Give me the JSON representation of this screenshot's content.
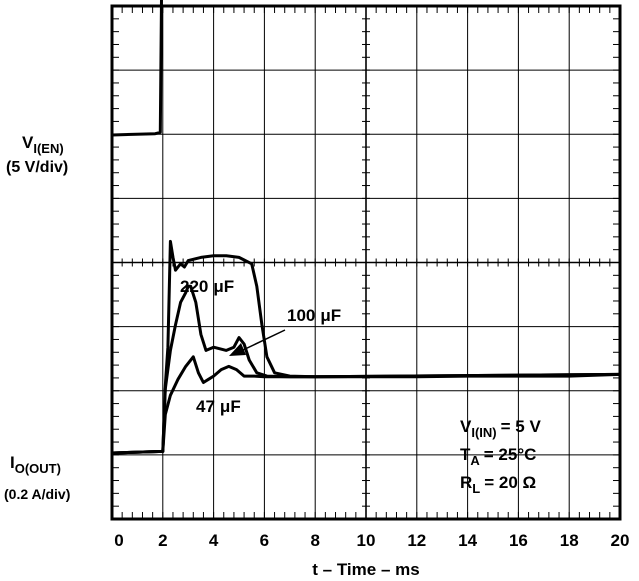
{
  "chart_data": {
    "type": "line",
    "xlabel": "t – Time – ms",
    "x_ticks": [
      "0",
      "2",
      "4",
      "6",
      "8",
      "10",
      "12",
      "14",
      "16",
      "18",
      "20"
    ],
    "xlim": [
      0,
      20
    ],
    "grid": true,
    "channels": [
      {
        "label_main": "V",
        "label_sub": "I(EN)",
        "scale": "(5 V/div)"
      },
      {
        "label_main": "I",
        "label_sub": "O(OUT)",
        "scale": "(0.2 A/div)"
      }
    ],
    "series": [
      {
        "name": "",
        "channel": "V(I(EN))",
        "unit": "V",
        "x": [
          0,
          1.7,
          1.9,
          1.95,
          2.05,
          2.2,
          2.35,
          2.6,
          3.5,
          6,
          10,
          14,
          18,
          20
        ],
        "values": [
          0,
          0.1,
          0.2,
          10.6,
          13.4,
          14.4,
          13.2,
          12.8,
          12.9,
          12.9,
          12.8,
          12.8,
          12.8,
          12.8
        ]
      },
      {
        "name": "220 µF",
        "channel": "I(O(OUT))",
        "unit": "A",
        "x": [
          0,
          2.0,
          2.1,
          2.2,
          2.25,
          2.3,
          2.4,
          2.5,
          2.6,
          2.7,
          2.85,
          3.0,
          3.5,
          4.0,
          4.5,
          5.0,
          5.5,
          5.7,
          5.9,
          6.1,
          6.4,
          7.0,
          8.0,
          10,
          12,
          14,
          16,
          18,
          20
        ],
        "values": [
          0,
          0.005,
          0.21,
          0.33,
          0.5,
          0.66,
          0.61,
          0.57,
          0.58,
          0.59,
          0.58,
          0.6,
          0.61,
          0.615,
          0.615,
          0.61,
          0.59,
          0.52,
          0.4,
          0.3,
          0.25,
          0.24,
          0.238,
          0.238,
          0.238,
          0.24,
          0.24,
          0.24,
          0.245
        ]
      },
      {
        "name": "100 µF",
        "channel": "I(O(OUT))",
        "unit": "A",
        "x": [
          0,
          2.0,
          2.1,
          2.3,
          2.5,
          2.7,
          2.9,
          3.0,
          3.1,
          3.3,
          3.5,
          3.7,
          4.0,
          4.5,
          4.8,
          5.0,
          5.2,
          5.4,
          5.7,
          6.1,
          7.0,
          8.0,
          20
        ],
        "values": [
          0,
          0.005,
          0.2,
          0.32,
          0.4,
          0.47,
          0.5,
          0.52,
          0.52,
          0.47,
          0.37,
          0.32,
          0.33,
          0.32,
          0.33,
          0.36,
          0.34,
          0.29,
          0.25,
          0.24,
          0.238,
          0.238,
          0.245
        ]
      },
      {
        "name": "47 µF",
        "channel": "I(O(OUT))",
        "unit": "A",
        "x": [
          0,
          2.0,
          2.1,
          2.3,
          2.6,
          2.9,
          3.2,
          3.4,
          3.6,
          3.8,
          4.0,
          4.3,
          4.6,
          4.9,
          5.2,
          5.6,
          6.0,
          7.0,
          8.0,
          20
        ],
        "values": [
          0,
          0.005,
          0.12,
          0.18,
          0.23,
          0.27,
          0.3,
          0.25,
          0.22,
          0.23,
          0.24,
          0.26,
          0.27,
          0.26,
          0.24,
          0.24,
          0.238,
          0.238,
          0.238,
          0.245
        ]
      }
    ],
    "annotations": {
      "cap_220": {
        "value": "220",
        "unit": "μF"
      },
      "cap_100": {
        "value": "100",
        "unit": "μF"
      },
      "cap_47": {
        "value": "47",
        "unit": "μF"
      },
      "conditions": {
        "vin_main": "V",
        "vin_sub": "I(IN)",
        "vin_val": "= 5 V",
        "ta_main": "T",
        "ta_sub": "A",
        "ta_val": "= 25°C",
        "rl_main": "R",
        "rl_sub": "L",
        "rl_val": "= 20 Ω"
      }
    }
  },
  "colors": {
    "trace": "#000000",
    "grid": "#000000",
    "background": "#ffffff"
  }
}
